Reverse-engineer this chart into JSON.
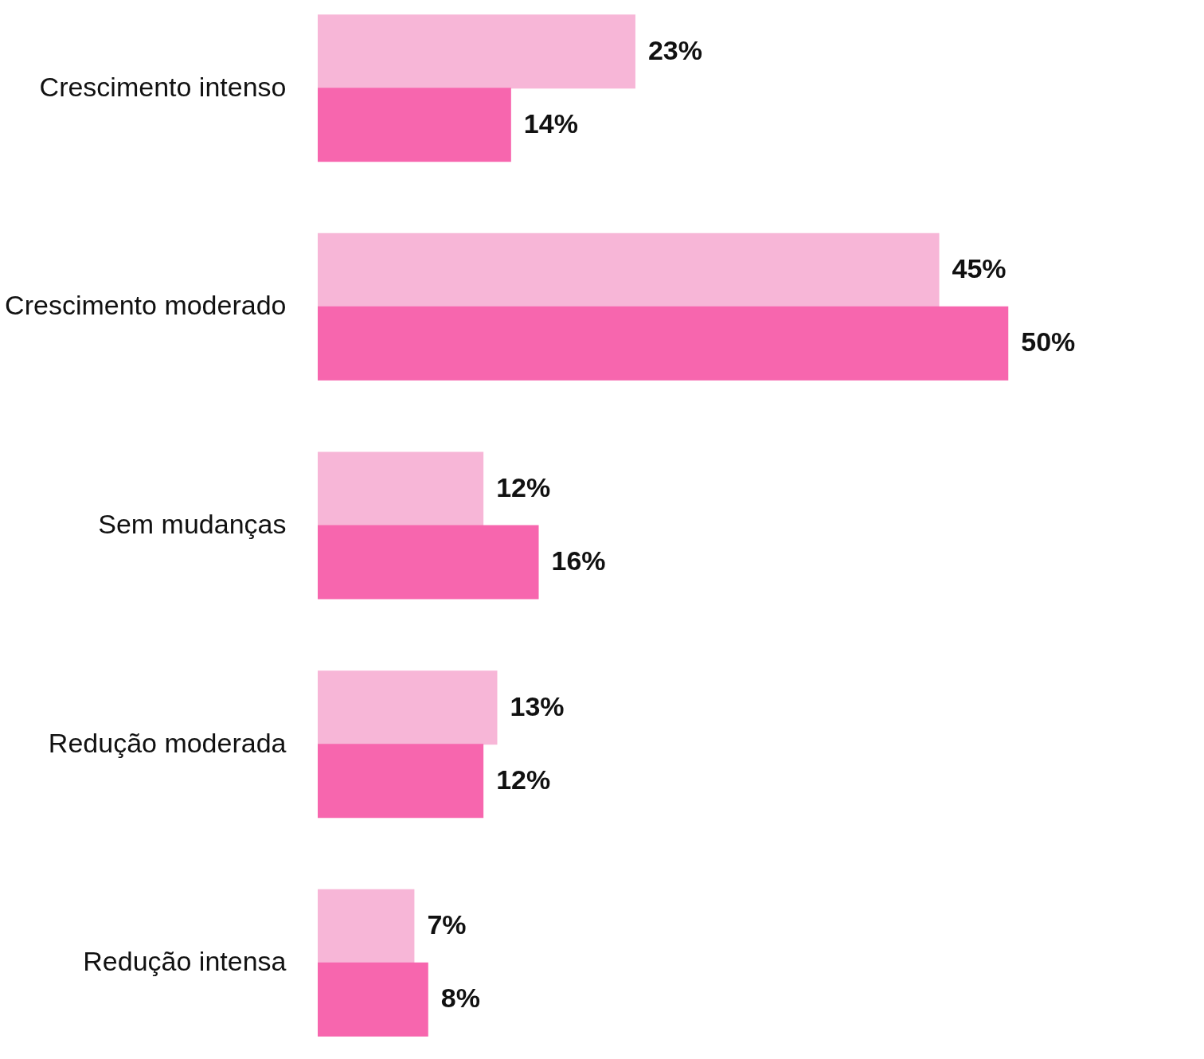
{
  "chart_data": {
    "type": "bar",
    "orientation": "horizontal",
    "categories": [
      "Crescimento intenso",
      "Crescimento moderado",
      "Sem mudanças",
      "Redução moderada",
      "Redução intensa"
    ],
    "series": [
      {
        "color": "#f7b6d7",
        "values": [
          23,
          45,
          12,
          13,
          7
        ],
        "value_labels": [
          "23%",
          "45%",
          "12%",
          "13%",
          "7%"
        ]
      },
      {
        "color": "#f766ae",
        "values": [
          14,
          50,
          16,
          12,
          8
        ],
        "value_labels": [
          "14%",
          "50%",
          "16%",
          "12%",
          "8%"
        ]
      }
    ]
  }
}
